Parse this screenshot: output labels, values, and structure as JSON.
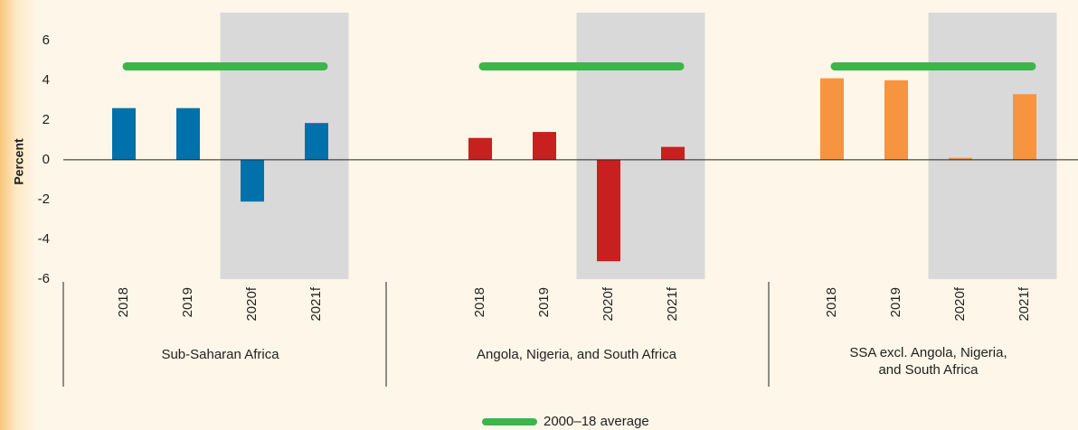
{
  "chart_data": {
    "type": "bar",
    "y_label": "Percent",
    "ylim": [
      -6,
      7.4
    ],
    "yticks": [
      -6,
      -4,
      -2,
      0,
      2,
      4,
      6
    ],
    "average_name": "2000–18 average",
    "average_color": "#3cb54a",
    "groups": [
      {
        "name": "Sub-Saharan Africa",
        "color": "#0071ab",
        "categories": [
          "2018",
          "2019",
          "2020f",
          "2021f"
        ],
        "values": [
          2.6,
          2.6,
          -2.1,
          1.85
        ],
        "average": 4.7
      },
      {
        "name": "Angola, Nigeria, and South Africa",
        "color": "#c8201e",
        "categories": [
          "2018",
          "2019",
          "2020f",
          "2021f"
        ],
        "values": [
          1.1,
          1.4,
          -5.1,
          0.65
        ],
        "average": 4.7
      },
      {
        "name": "SSA excl. Angola, Nigeria,\nand South Africa",
        "color": "#f7943f",
        "categories": [
          "2018",
          "2019",
          "2020f",
          "2021f"
        ],
        "values": [
          4.1,
          4.0,
          0.1,
          3.3
        ],
        "average": 4.7
      }
    ]
  }
}
